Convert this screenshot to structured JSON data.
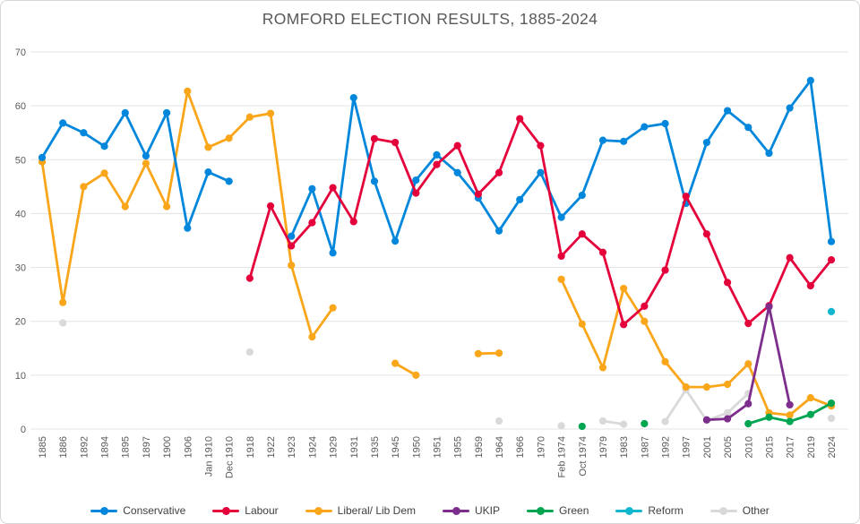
{
  "chart_data": {
    "type": "line",
    "title": "ROMFORD ELECTION RESULTS, 1885-2024",
    "categories": [
      "1885",
      "1886",
      "1892",
      "1894",
      "1895",
      "1897",
      "1900",
      "1906",
      "Jan 1910",
      "Dec 1910",
      "1918",
      "1922",
      "1923",
      "1924",
      "1929",
      "1931",
      "1935",
      "1945",
      "1950",
      "1951",
      "1955",
      "1959",
      "1964",
      "1966",
      "1970",
      "Feb 1974",
      "Oct 1974",
      "1979",
      "1983",
      "1987",
      "1992",
      "1997",
      "2001",
      "2005",
      "2010",
      "2015",
      "2017",
      "2019",
      "2024"
    ],
    "ylim": [
      0,
      70
    ],
    "y_ticks": [
      0,
      10,
      20,
      30,
      40,
      50,
      60,
      70
    ],
    "grid": "horizontal-light-gray",
    "legend_position": "bottom",
    "series": [
      {
        "name": "Conservative",
        "color": "#0087DC",
        "values": [
          50.4,
          56.8,
          55.0,
          52.5,
          58.7,
          50.7,
          58.7,
          37.3,
          47.7,
          46.0,
          null,
          null,
          35.8,
          44.6,
          32.7,
          61.5,
          46.0,
          34.9,
          46.2,
          50.9,
          47.6,
          42.9,
          36.8,
          42.6,
          47.6,
          39.3,
          43.4,
          53.6,
          53.4,
          56.1,
          56.7,
          41.9,
          53.2,
          59.1,
          56.0,
          51.2,
          59.6,
          64.7,
          34.8
        ]
      },
      {
        "name": "Labour",
        "color": "#E4003B",
        "values": [
          null,
          null,
          null,
          null,
          null,
          null,
          null,
          null,
          null,
          null,
          28.0,
          41.4,
          34.0,
          38.3,
          44.8,
          38.5,
          53.9,
          53.2,
          43.8,
          49.1,
          52.6,
          43.6,
          47.6,
          57.6,
          52.6,
          32.1,
          36.2,
          32.8,
          19.4,
          22.8,
          29.5,
          43.2,
          36.2,
          27.2,
          19.6,
          22.9,
          31.8,
          26.6,
          31.4
        ]
      },
      {
        "name": "Liberal/ Lib Dem",
        "color": "#FAA61A",
        "values": [
          49.6,
          23.5,
          45.0,
          47.5,
          41.3,
          49.3,
          41.3,
          62.7,
          52.3,
          54.0,
          57.9,
          58.6,
          30.4,
          17.1,
          22.5,
          null,
          null,
          12.2,
          10.0,
          null,
          null,
          14.0,
          14.1,
          null,
          null,
          27.8,
          19.5,
          11.4,
          26.1,
          20.0,
          12.5,
          7.8,
          7.8,
          8.3,
          12.1,
          3.0,
          2.6,
          5.8,
          4.3
        ]
      },
      {
        "name": "UKIP",
        "color": "#7D2E8D",
        "values": [
          null,
          null,
          null,
          null,
          null,
          null,
          null,
          null,
          null,
          null,
          null,
          null,
          null,
          null,
          null,
          null,
          null,
          null,
          null,
          null,
          null,
          null,
          null,
          null,
          null,
          null,
          null,
          null,
          null,
          null,
          null,
          null,
          1.7,
          1.9,
          4.7,
          22.7,
          4.5,
          null,
          null
        ]
      },
      {
        "name": "Green",
        "color": "#00A551",
        "values": [
          null,
          null,
          null,
          null,
          null,
          null,
          null,
          null,
          null,
          null,
          null,
          null,
          null,
          null,
          null,
          null,
          null,
          null,
          null,
          null,
          null,
          null,
          null,
          null,
          null,
          null,
          0.5,
          null,
          null,
          1.0,
          null,
          null,
          null,
          null,
          1.0,
          2.2,
          1.4,
          2.7,
          4.8
        ]
      },
      {
        "name": "Reform",
        "color": "#12B6CF",
        "values": [
          null,
          null,
          null,
          null,
          null,
          null,
          null,
          null,
          null,
          null,
          null,
          null,
          null,
          null,
          null,
          null,
          null,
          null,
          null,
          null,
          null,
          null,
          null,
          null,
          null,
          null,
          null,
          null,
          null,
          null,
          null,
          null,
          null,
          null,
          null,
          null,
          null,
          null,
          21.8
        ]
      },
      {
        "name": "Other",
        "color": "#D9D9D9",
        "values": [
          null,
          19.7,
          null,
          null,
          null,
          null,
          null,
          null,
          null,
          null,
          14.3,
          null,
          null,
          null,
          null,
          null,
          null,
          null,
          null,
          null,
          null,
          null,
          1.5,
          null,
          null,
          0.6,
          null,
          1.5,
          0.9,
          null,
          1.4,
          7.3,
          1.6,
          3.0,
          6.6,
          null,
          null,
          null,
          2.0
        ]
      }
    ]
  }
}
